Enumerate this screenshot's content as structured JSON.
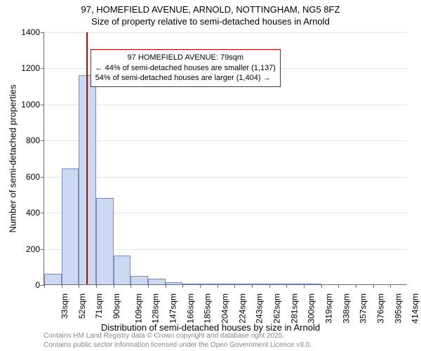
{
  "title_line1": "97, HOMEFIELD AVENUE, ARNOLD, NOTTINGHAM, NG5 8FZ",
  "title_line2": "Size of property relative to semi-detached houses in Arnold",
  "chart": {
    "type": "histogram",
    "background_color": "#ffffff",
    "grid_color": "#e5e5e5",
    "axis_color": "#6b6b6b",
    "text_color": "#000000",
    "ylabel": "Number of semi-detached properties",
    "xlabel": "Distribution of semi-detached houses by size in Arnold",
    "label_fontsize": 13,
    "tick_fontsize": 12,
    "ylim": [
      0,
      1400
    ],
    "ytick_step": 200,
    "yticks": [
      0,
      200,
      400,
      600,
      800,
      1000,
      1200,
      1400
    ],
    "x_categories": [
      "33sqm",
      "52sqm",
      "71sqm",
      "90sqm",
      "109sqm",
      "128sqm",
      "147sqm",
      "166sqm",
      "185sqm",
      "204sqm",
      "224sqm",
      "243sqm",
      "262sqm",
      "281sqm",
      "300sqm",
      "319sqm",
      "338sqm",
      "357sqm",
      "376sqm",
      "395sqm",
      "414sqm"
    ],
    "bar_values": [
      60,
      640,
      1160,
      480,
      160,
      48,
      30,
      12,
      5,
      4,
      2,
      1,
      1,
      1,
      1,
      1,
      0,
      0,
      0,
      0,
      0
    ],
    "bar_fill": "#cdd8f1",
    "bar_stroke": "#7a8bbf",
    "bar_width_ratio": 1.0,
    "reference_line": {
      "x_value_sqm": 79,
      "color": "#cc0000"
    },
    "annotation": {
      "lines": [
        "97 HOMEFIELD AVENUE: 79sqm",
        "← 44% of semi-detached houses are smaller (1,137)",
        "54% of semi-detached houses are larger (1,404) →"
      ],
      "border_color": "#cc0000",
      "background_color": "#ffffff",
      "fontsize": 11
    }
  },
  "credits": {
    "line1": "Contains HM Land Registry data © Crown copyright and database right 2025.",
    "line2": "Contains public sector information licensed under the Open Government Licence v3.0.",
    "color": "#888888"
  }
}
